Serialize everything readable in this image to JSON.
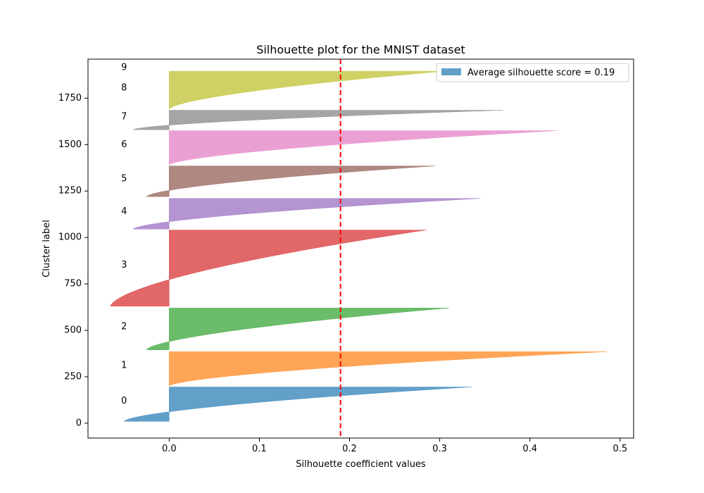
{
  "chart_data": {
    "type": "area",
    "title": "Silhouette plot for the MNIST dataset",
    "xlabel": "Silhouette coefficient values",
    "ylabel": "Cluster label",
    "xlim": [
      -0.09,
      0.515
    ],
    "ylim": [
      -80,
      1960
    ],
    "xticks": [
      0.0,
      0.1,
      0.2,
      0.3,
      0.4,
      0.5
    ],
    "xtick_labels": [
      "0.0",
      "0.1",
      "0.2",
      "0.3",
      "0.4",
      "0.5"
    ],
    "yticks": [
      0,
      250,
      500,
      750,
      1000,
      1250,
      1500,
      1750
    ],
    "ytick_labels": [
      "0",
      "250",
      "500",
      "750",
      "1000",
      "1250",
      "1500",
      "1750"
    ],
    "average_silhouette_score": 0.19,
    "legend": {
      "label": "Average silhouette score = 0.19",
      "placement": "upper right"
    },
    "clusters": [
      {
        "label": "0",
        "y_start": 10,
        "y_end": 195,
        "min": -0.05,
        "max": 0.335,
        "color": "#1f77b4"
      },
      {
        "label": "1",
        "y_start": 200,
        "y_end": 385,
        "min": 0.0,
        "max": 0.485,
        "color": "#ff7f0e"
      },
      {
        "label": "2",
        "y_start": 395,
        "y_end": 620,
        "min": -0.025,
        "max": 0.31,
        "color": "#2ca02c"
      },
      {
        "label": "3",
        "y_start": 630,
        "y_end": 1040,
        "min": -0.065,
        "max": 0.285,
        "color": "#d62728"
      },
      {
        "label": "4",
        "y_start": 1045,
        "y_end": 1210,
        "min": -0.04,
        "max": 0.345,
        "color": "#9467bd"
      },
      {
        "label": "5",
        "y_start": 1220,
        "y_end": 1385,
        "min": -0.025,
        "max": 0.295,
        "color": "#8c564b"
      },
      {
        "label": "6",
        "y_start": 1390,
        "y_end": 1575,
        "min": 0.0,
        "max": 0.43,
        "color": "#e377c2"
      },
      {
        "label": "7",
        "y_start": 1580,
        "y_end": 1685,
        "min": -0.04,
        "max": 0.37,
        "color": "#7f7f7f"
      },
      {
        "label": "8",
        "y_start": 1690,
        "y_end": 1895,
        "min": 0.0,
        "max": 0.305,
        "color": "#bcbd22"
      },
      {
        "label": "9",
        "y_start": 1900,
        "y_end": 1902,
        "min": 0.0,
        "max": 0.0,
        "color": "#17becf"
      }
    ],
    "label_positions": [
      {
        "label": "0",
        "y": 120
      },
      {
        "label": "1",
        "y": 310
      },
      {
        "label": "2",
        "y": 520
      },
      {
        "label": "3",
        "y": 850
      },
      {
        "label": "4",
        "y": 1140
      },
      {
        "label": "5",
        "y": 1315
      },
      {
        "label": "6",
        "y": 1500
      },
      {
        "label": "7",
        "y": 1650
      },
      {
        "label": "8",
        "y": 1805
      },
      {
        "label": "9",
        "y": 1915
      }
    ],
    "label_x": -0.05,
    "grid": false
  }
}
